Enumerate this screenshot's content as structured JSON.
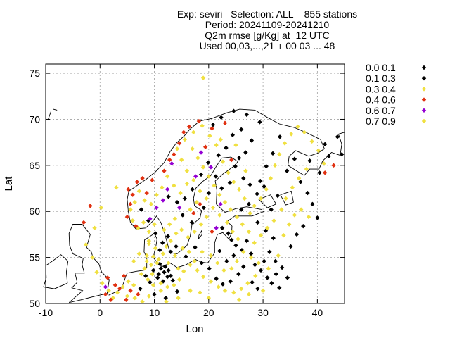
{
  "title_lines": [
    "Exp: seviri   Selection: ALL    855 stations",
    "Period: 20241109-20241210",
    "Q2m rmse [g/Kg] at  12 UTC",
    "Used 00,03,...,21 + 00 03 ... 48"
  ],
  "chart_data": {
    "type": "scatter",
    "xlabel": "Lon",
    "ylabel": "Lat",
    "xlim": [
      -10,
      45
    ],
    "ylim": [
      50,
      76
    ],
    "xticks": [
      -10,
      0,
      10,
      20,
      30,
      40
    ],
    "yticks": [
      50,
      55,
      60,
      65,
      70,
      75
    ],
    "grid": true,
    "legend_position": "right",
    "legend": [
      {
        "label": "0.0 0.1",
        "color": "#000000"
      },
      {
        "label": "0.1 0.3",
        "color": "#000000"
      },
      {
        "label": "0.3 0.4",
        "color": "#f0e040"
      },
      {
        "label": "0.4 0.6",
        "color": "#e03010"
      },
      {
        "label": "0.6 0.7",
        "color": "#9400d3"
      },
      {
        "label": "0.7 0.9",
        "color": "#f0e040"
      }
    ],
    "points": [
      [
        11.2,
        53.8,
        1
      ],
      [
        11.8,
        53.4,
        1
      ],
      [
        12.6,
        53.6,
        1
      ],
      [
        11.0,
        54.3,
        1
      ],
      [
        12.0,
        54.0,
        1
      ],
      [
        10.8,
        53.2,
        1
      ],
      [
        13.4,
        52.5,
        1
      ],
      [
        12.4,
        52.9,
        1
      ],
      [
        11.6,
        52.4,
        1
      ],
      [
        10.6,
        52.8,
        1
      ],
      [
        9.8,
        53.6,
        1
      ],
      [
        13.0,
        53.0,
        1
      ],
      [
        22.5,
        58.2,
        1
      ],
      [
        23.6,
        57.6,
        1
      ],
      [
        24.2,
        56.9,
        1
      ],
      [
        25.0,
        56.3,
        1
      ],
      [
        26.1,
        55.8,
        1
      ],
      [
        24.6,
        55.2,
        1
      ],
      [
        23.3,
        54.6,
        1
      ],
      [
        22.0,
        55.7,
        1
      ],
      [
        27.0,
        56.8,
        1
      ],
      [
        27.8,
        55.4,
        1
      ],
      [
        28.5,
        54.2,
        1
      ],
      [
        29.6,
        53.6,
        1
      ],
      [
        30.8,
        52.8,
        1
      ],
      [
        31.6,
        52.2,
        1
      ],
      [
        33.0,
        51.7,
        1
      ],
      [
        32.4,
        53.2,
        1
      ],
      [
        30.2,
        54.6,
        1
      ],
      [
        26.4,
        54.0,
        1
      ],
      [
        25.5,
        53.2,
        1
      ],
      [
        24.0,
        52.4,
        1
      ],
      [
        22.6,
        52.1,
        1
      ],
      [
        21.4,
        52.7,
        1
      ],
      [
        28.0,
        52.3,
        1
      ],
      [
        29.0,
        51.6,
        1
      ],
      [
        31.2,
        55.6,
        1
      ],
      [
        32.3,
        54.6,
        1
      ],
      [
        33.5,
        53.9,
        1
      ],
      [
        34.5,
        52.8,
        1
      ],
      [
        26.0,
        60.2,
        1
      ],
      [
        27.4,
        60.8,
        1
      ],
      [
        28.9,
        61.9,
        1
      ],
      [
        29.5,
        63.3,
        1
      ],
      [
        27.6,
        62.9,
        1
      ],
      [
        26.4,
        63.6,
        1
      ],
      [
        24.9,
        64.9,
        1
      ],
      [
        25.6,
        65.8,
        1
      ],
      [
        26.8,
        66.4,
        1
      ],
      [
        27.9,
        67.7,
        1
      ],
      [
        26.0,
        68.9,
        1
      ],
      [
        24.4,
        68.3,
        1
      ],
      [
        23.2,
        66.9,
        1
      ],
      [
        21.8,
        66.1,
        1
      ],
      [
        19.9,
        65.3,
        1
      ],
      [
        18.6,
        64.0,
        1
      ],
      [
        17.0,
        62.4,
        1
      ],
      [
        15.6,
        61.4,
        1
      ],
      [
        14.2,
        61.0,
        1
      ],
      [
        12.6,
        61.6,
        1
      ],
      [
        30.6,
        64.9,
        1
      ],
      [
        31.8,
        66.3,
        1
      ],
      [
        33.1,
        68.1,
        1
      ],
      [
        34.4,
        64.4,
        1
      ],
      [
        35.8,
        65.7,
        1
      ],
      [
        36.9,
        63.2,
        1
      ],
      [
        38.2,
        62.0,
        1
      ],
      [
        39.1,
        60.8,
        1
      ],
      [
        40.0,
        59.3,
        1
      ],
      [
        37.4,
        58.4,
        1
      ],
      [
        36.2,
        57.5,
        1
      ],
      [
        35.1,
        56.2,
        1
      ],
      [
        38.6,
        65.5,
        1
      ],
      [
        40.4,
        64.2,
        1
      ],
      [
        42.1,
        66.0,
        1
      ],
      [
        44.5,
        66.2,
        1
      ],
      [
        43.7,
        68.1,
        1
      ],
      [
        41.4,
        67.3,
        1
      ],
      [
        31.5,
        60.2,
        1
      ],
      [
        32.7,
        61.7,
        1
      ],
      [
        30.2,
        62.7,
        1
      ],
      [
        29.0,
        58.8,
        1
      ],
      [
        30.5,
        57.9,
        1
      ],
      [
        31.9,
        57.1,
        1
      ],
      [
        20.8,
        69.4,
        1
      ],
      [
        22.3,
        70.2,
        1
      ],
      [
        24.6,
        70.9,
        1
      ],
      [
        27.0,
        70.5,
        1
      ],
      [
        29.4,
        69.7,
        1
      ],
      [
        23.9,
        63.1,
        1
      ],
      [
        22.4,
        62.5,
        1
      ],
      [
        21.3,
        63.8,
        1
      ],
      [
        20.0,
        62.0,
        1
      ],
      [
        19.1,
        60.4,
        1
      ],
      [
        16.9,
        58.8,
        1
      ],
      [
        15.2,
        59.6,
        1
      ],
      [
        14.0,
        56.2,
        1
      ],
      [
        13.0,
        55.6,
        1
      ],
      [
        15.8,
        55.1,
        1
      ],
      [
        17.5,
        56.1,
        1
      ],
      [
        18.7,
        54.4,
        1
      ],
      [
        20.1,
        53.8,
        1
      ],
      [
        8.4,
        53.0,
        1
      ],
      [
        9.2,
        52.3,
        1
      ],
      [
        7.4,
        51.6,
        1
      ],
      [
        10.0,
        51.0,
        1
      ],
      [
        12.1,
        50.6,
        1
      ],
      [
        14.2,
        51.3,
        1
      ],
      [
        11.0,
        55.8,
        1
      ],
      [
        11.5,
        56.6,
        1
      ],
      [
        12.5,
        57.3,
        1
      ],
      [
        10.2,
        57.6,
        1
      ],
      [
        8.9,
        59.0,
        1
      ],
      [
        7.6,
        60.2,
        1
      ],
      [
        10.5,
        54.4,
        2
      ],
      [
        9.8,
        55.1,
        2
      ],
      [
        10.2,
        56.0,
        2
      ],
      [
        9.0,
        56.5,
        2
      ],
      [
        8.6,
        55.2,
        2
      ],
      [
        9.4,
        54.2,
        2
      ],
      [
        8.2,
        53.8,
        2
      ],
      [
        7.6,
        53.2,
        2
      ],
      [
        8.8,
        52.6,
        2
      ],
      [
        9.8,
        52.0,
        2
      ],
      [
        11.2,
        51.4,
        2
      ],
      [
        12.4,
        51.8,
        2
      ],
      [
        13.6,
        52.0,
        2
      ],
      [
        14.6,
        52.6,
        2
      ],
      [
        15.4,
        53.5,
        2
      ],
      [
        16.6,
        54.2,
        2
      ],
      [
        17.9,
        53.6,
        2
      ],
      [
        19.0,
        52.9,
        2
      ],
      [
        20.4,
        52.4,
        2
      ],
      [
        21.8,
        51.8,
        2
      ],
      [
        23.0,
        51.4,
        2
      ],
      [
        24.6,
        51.2,
        2
      ],
      [
        26.0,
        51.6,
        2
      ],
      [
        27.2,
        52.2,
        2
      ],
      [
        28.6,
        53.0,
        2
      ],
      [
        29.2,
        54.4,
        2
      ],
      [
        27.8,
        55.0,
        2
      ],
      [
        26.4,
        55.6,
        2
      ],
      [
        25.4,
        57.0,
        2
      ],
      [
        24.4,
        57.8,
        2
      ],
      [
        23.4,
        58.8,
        2
      ],
      [
        22.0,
        59.6,
        2
      ],
      [
        20.8,
        60.4,
        2
      ],
      [
        19.6,
        61.4,
        2
      ],
      [
        18.4,
        62.2,
        2
      ],
      [
        17.2,
        63.4,
        2
      ],
      [
        16.0,
        64.4,
        2
      ],
      [
        15.0,
        65.6,
        2
      ],
      [
        14.2,
        66.8,
        2
      ],
      [
        15.6,
        67.8,
        2
      ],
      [
        17.2,
        68.6,
        2
      ],
      [
        18.8,
        69.3,
        2
      ],
      [
        20.2,
        68.2,
        2
      ],
      [
        21.4,
        67.2,
        2
      ],
      [
        22.6,
        65.4,
        2
      ],
      [
        23.6,
        64.2,
        2
      ],
      [
        24.6,
        63.2,
        2
      ],
      [
        25.6,
        62.4,
        2
      ],
      [
        26.6,
        61.4,
        2
      ],
      [
        27.6,
        59.8,
        2
      ],
      [
        28.4,
        60.6,
        2
      ],
      [
        29.6,
        61.4,
        2
      ],
      [
        30.6,
        62.4,
        2
      ],
      [
        31.4,
        63.6,
        2
      ],
      [
        32.2,
        65.0,
        2
      ],
      [
        33.0,
        66.2,
        2
      ],
      [
        34.0,
        67.4,
        2
      ],
      [
        35.2,
        68.4,
        2
      ],
      [
        36.4,
        69.2,
        2
      ],
      [
        37.6,
        68.6,
        2
      ],
      [
        39.0,
        67.6,
        2
      ],
      [
        40.2,
        66.6,
        2
      ],
      [
        41.2,
        65.2,
        2
      ],
      [
        38.0,
        64.6,
        2
      ],
      [
        36.6,
        63.6,
        2
      ],
      [
        35.4,
        62.6,
        2
      ],
      [
        34.2,
        61.4,
        2
      ],
      [
        33.4,
        60.2,
        2
      ],
      [
        32.0,
        59.0,
        2
      ],
      [
        30.8,
        58.2,
        2
      ],
      [
        29.6,
        57.4,
        2
      ],
      [
        28.4,
        56.6,
        2
      ],
      [
        27.4,
        57.8,
        2
      ],
      [
        26.2,
        58.6,
        2
      ],
      [
        25.2,
        59.4,
        2
      ],
      [
        24.0,
        60.2,
        2
      ],
      [
        23.0,
        61.0,
        2
      ],
      [
        22.0,
        61.8,
        2
      ],
      [
        21.0,
        62.8,
        2
      ],
      [
        20.0,
        63.8,
        2
      ],
      [
        19.0,
        64.8,
        2
      ],
      [
        18.0,
        65.8,
        2
      ],
      [
        17.0,
        66.8,
        2
      ],
      [
        16.0,
        63.0,
        2
      ],
      [
        14.8,
        62.0,
        2
      ],
      [
        13.6,
        62.8,
        2
      ],
      [
        12.4,
        63.8,
        2
      ],
      [
        11.4,
        62.6,
        2
      ],
      [
        10.4,
        61.8,
        2
      ],
      [
        9.4,
        60.8,
        2
      ],
      [
        8.2,
        61.2,
        2
      ],
      [
        7.2,
        62.2,
        2
      ],
      [
        6.4,
        61.0,
        2
      ],
      [
        5.6,
        60.2,
        2
      ],
      [
        6.0,
        59.0,
        2
      ],
      [
        7.0,
        58.2,
        2
      ],
      [
        8.0,
        58.8,
        2
      ],
      [
        9.0,
        57.8,
        2
      ],
      [
        11.8,
        58.0,
        2
      ],
      [
        12.8,
        58.6,
        2
      ],
      [
        13.8,
        59.2,
        2
      ],
      [
        15.0,
        58.0,
        2
      ],
      [
        16.2,
        57.2,
        2
      ],
      [
        17.4,
        57.8,
        2
      ],
      [
        18.6,
        58.6,
        2
      ],
      [
        19.6,
        59.4,
        2
      ],
      [
        16.6,
        60.2,
        2
      ],
      [
        17.8,
        61.0,
        2
      ],
      [
        18.8,
        55.6,
        2
      ],
      [
        20.4,
        55.2,
        2
      ],
      [
        21.6,
        54.4,
        2
      ],
      [
        22.8,
        53.6,
        2
      ],
      [
        24.2,
        53.8,
        2
      ],
      [
        25.2,
        54.6,
        2
      ],
      [
        3.2,
        51.2,
        2
      ],
      [
        4.2,
        51.8,
        2
      ],
      [
        5.2,
        52.4,
        2
      ],
      [
        6.2,
        52.0,
        2
      ],
      [
        5.0,
        50.8,
        2
      ],
      [
        6.4,
        50.6,
        2
      ],
      [
        7.8,
        50.2,
        2
      ],
      [
        9.0,
        50.8,
        2
      ],
      [
        2.4,
        50.6,
        2
      ],
      [
        1.6,
        51.4,
        2
      ],
      [
        0.4,
        52.2,
        2
      ],
      [
        -0.6,
        53.4,
        2
      ],
      [
        -1.4,
        55.0,
        2
      ],
      [
        -2.6,
        56.4,
        2
      ],
      [
        -1.0,
        58.2,
        2
      ],
      [
        0.2,
        60.4,
        2
      ],
      [
        3.0,
        62.6,
        2
      ],
      [
        19.0,
        74.5,
        2
      ],
      [
        10.8,
        54.8,
        2
      ],
      [
        11.6,
        55.4,
        2
      ],
      [
        12.2,
        56.2,
        2
      ],
      [
        13.0,
        56.8,
        2
      ],
      [
        14.0,
        57.6,
        2
      ],
      [
        10.0,
        58.6,
        2
      ],
      [
        4.4,
        53.0,
        3
      ],
      [
        3.6,
        51.6,
        3
      ],
      [
        2.8,
        52.0,
        3
      ],
      [
        1.4,
        52.8,
        3
      ],
      [
        1.0,
        51.0,
        3
      ],
      [
        2.0,
        50.4,
        3
      ],
      [
        4.8,
        50.4,
        3
      ],
      [
        6.0,
        61.8,
        3
      ],
      [
        5.2,
        62.4,
        3
      ],
      [
        6.8,
        63.2,
        3
      ],
      [
        7.8,
        63.6,
        3
      ],
      [
        5.6,
        60.8,
        3
      ],
      [
        5.0,
        59.4,
        3
      ],
      [
        6.6,
        58.4,
        3
      ],
      [
        14.6,
        67.4,
        3
      ],
      [
        13.6,
        66.2,
        3
      ],
      [
        15.4,
        68.6,
        3
      ],
      [
        16.4,
        69.2,
        3
      ],
      [
        18.2,
        69.8,
        3
      ],
      [
        19.4,
        67.0,
        3
      ],
      [
        20.6,
        69.0,
        3
      ],
      [
        23.0,
        69.6,
        3
      ],
      [
        9.6,
        63.4,
        3
      ],
      [
        11.8,
        64.4,
        3
      ],
      [
        12.8,
        65.6,
        3
      ],
      [
        8.6,
        62.0,
        3
      ],
      [
        -3.0,
        58.8,
        3
      ],
      [
        -1.8,
        60.6,
        3
      ],
      [
        24.2,
        65.6,
        3
      ],
      [
        41.4,
        64.2,
        3
      ],
      [
        43.0,
        65.0,
        3
      ],
      [
        18.4,
        60.8,
        3
      ],
      [
        17.2,
        59.8,
        3
      ],
      [
        20.6,
        57.8,
        3
      ],
      [
        5.6,
        51.4,
        3
      ],
      [
        7.0,
        51.0,
        3
      ],
      [
        10.4,
        60.4,
        4
      ],
      [
        11.6,
        61.2,
        4
      ],
      [
        12.4,
        62.4,
        4
      ],
      [
        18.6,
        66.4,
        4
      ],
      [
        20.4,
        64.8,
        4
      ],
      [
        17.6,
        63.8,
        4
      ],
      [
        13.2,
        65.2,
        4
      ],
      [
        22.2,
        60.8,
        4
      ],
      [
        9.2,
        59.2,
        4
      ],
      [
        21.4,
        58.2,
        4
      ],
      [
        14.6,
        60.4,
        4
      ],
      [
        1.0,
        51.8,
        4
      ],
      [
        9.0,
        56.8,
        5
      ],
      [
        7.2,
        55.4,
        5
      ],
      [
        6.2,
        54.6,
        5
      ],
      [
        12.6,
        54.4,
        5
      ],
      [
        13.8,
        55.2,
        5
      ],
      [
        15.2,
        56.0,
        5
      ],
      [
        16.4,
        55.6,
        5
      ],
      [
        17.4,
        54.6,
        5
      ],
      [
        14.4,
        53.8,
        5
      ],
      [
        9.6,
        53.2,
        5
      ],
      [
        8.6,
        54.6,
        5
      ],
      [
        11.2,
        52.2,
        5
      ],
      [
        12.2,
        50.2,
        5
      ],
      [
        14.4,
        50.6,
        5
      ],
      [
        16.6,
        51.4,
        5
      ],
      [
        18.4,
        51.2,
        5
      ],
      [
        20.0,
        50.6,
        5
      ],
      [
        25.6,
        50.4,
        5
      ],
      [
        27.4,
        51.0,
        5
      ],
      [
        30.0,
        51.4,
        5
      ],
      [
        31.0,
        53.8,
        5
      ],
      [
        32.8,
        55.2,
        5
      ],
      [
        33.8,
        57.4,
        5
      ],
      [
        34.8,
        58.6,
        5
      ],
      [
        35.8,
        59.6,
        5
      ],
      [
        37.0,
        60.2,
        5
      ],
      [
        38.4,
        59.4,
        5
      ],
      [
        26.8,
        64.4,
        5
      ],
      [
        25.0,
        67.2,
        5
      ],
      [
        22.2,
        67.8,
        5
      ]
    ]
  }
}
